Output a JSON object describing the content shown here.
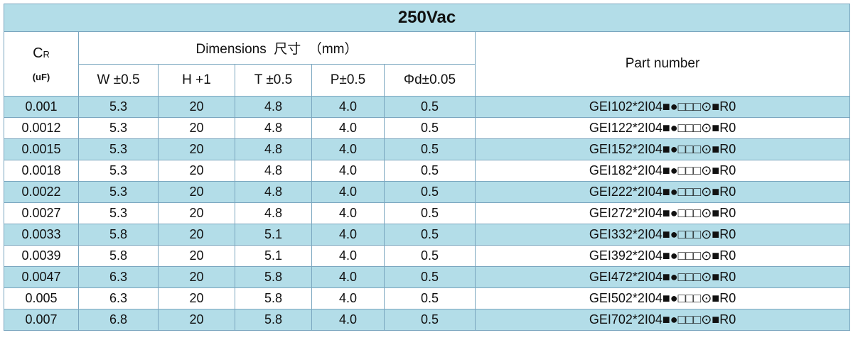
{
  "table": {
    "title": "250Vac",
    "header": {
      "cr": {
        "main": "C",
        "sub": "R",
        "unit": "(uF)"
      },
      "dimensions": "Dimensions  尺寸  （mm）",
      "columns": [
        "W ±0.5",
        "H +1",
        "T ±0.5",
        "P±0.5",
        "Φd±0.05"
      ],
      "part_number": "Part number"
    },
    "rows": [
      [
        "0.001",
        "5.3",
        "20",
        "4.8",
        "4.0",
        "0.5",
        "GEI102*2I04■●□□□⊙■R0"
      ],
      [
        "0.0012",
        "5.3",
        "20",
        "4.8",
        "4.0",
        "0.5",
        "GEI122*2I04■●□□□⊙■R0"
      ],
      [
        "0.0015",
        "5.3",
        "20",
        "4.8",
        "4.0",
        "0.5",
        "GEI152*2I04■●□□□⊙■R0"
      ],
      [
        "0.0018",
        "5.3",
        "20",
        "4.8",
        "4.0",
        "0.5",
        "GEI182*2I04■●□□□⊙■R0"
      ],
      [
        "0.0022",
        "5.3",
        "20",
        "4.8",
        "4.0",
        "0.5",
        "GEI222*2I04■●□□□⊙■R0"
      ],
      [
        "0.0027",
        "5.3",
        "20",
        "4.8",
        "4.0",
        "0.5",
        "GEI272*2I04■●□□□⊙■R0"
      ],
      [
        "0.0033",
        "5.8",
        "20",
        "5.1",
        "4.0",
        "0.5",
        "GEI332*2I04■●□□□⊙■R0"
      ],
      [
        "0.0039",
        "5.8",
        "20",
        "5.1",
        "4.0",
        "0.5",
        "GEI392*2I04■●□□□⊙■R0"
      ],
      [
        "0.0047",
        "6.3",
        "20",
        "5.8",
        "4.0",
        "0.5",
        "GEI472*2I04■●□□□⊙■R0"
      ],
      [
        "0.005",
        "6.3",
        "20",
        "5.8",
        "4.0",
        "0.5",
        "GEI502*2I04■●□□□⊙■R0"
      ],
      [
        "0.007",
        "6.8",
        "20",
        "5.8",
        "4.0",
        "0.5",
        "GEI702*2I04■●□□□⊙■R0"
      ]
    ]
  }
}
